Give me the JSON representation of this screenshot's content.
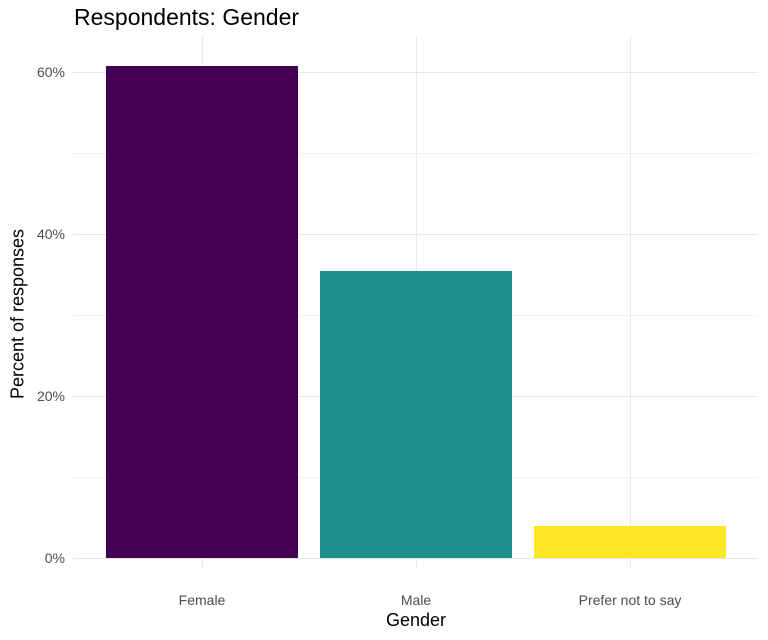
{
  "chart_data": {
    "type": "bar",
    "title": "Respondents: Gender",
    "xlabel": "Gender",
    "ylabel": "Percent of responses",
    "categories": [
      "Female",
      "Male",
      "Prefer not to say"
    ],
    "values": [
      60.7,
      35.4,
      4.0
    ],
    "value_unit": "%",
    "colors": [
      "#440154",
      "#21908C",
      "#FDE725"
    ],
    "ylim": [
      0,
      63
    ],
    "y_ticks": [
      0,
      20,
      40,
      60
    ],
    "y_tick_labels": [
      "0%",
      "20%",
      "40%",
      "60%"
    ],
    "y_minor_ticks": [
      10,
      30,
      50
    ],
    "grid": true,
    "legend": "none"
  },
  "labels": {
    "title": "Respondents: Gender",
    "xlabel": "Gender",
    "ylabel": "Percent of responses",
    "y_ticks": [
      "0%",
      "20%",
      "40%",
      "60%"
    ],
    "x_ticks": [
      "Female",
      "Male",
      "Prefer not to say"
    ]
  }
}
